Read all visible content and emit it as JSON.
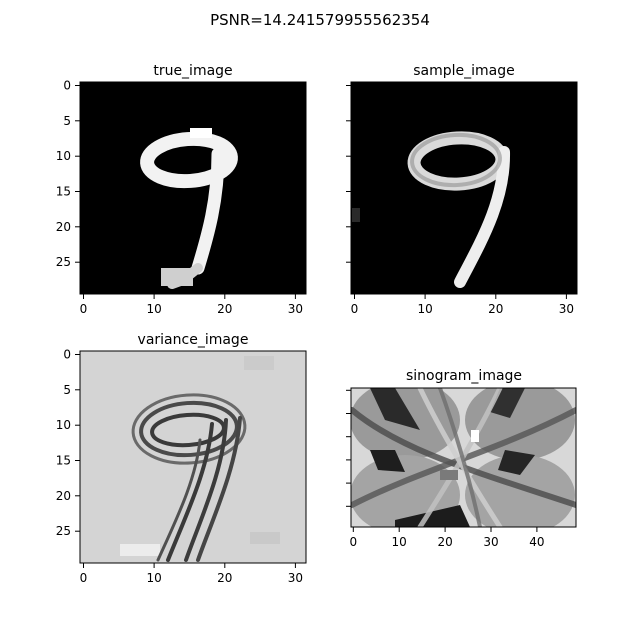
{
  "figure": {
    "suptitle": "PSNR=14.241579955562354"
  },
  "chart_data": [
    {
      "type": "heatmap",
      "panel": "true_image",
      "title": "true_image",
      "colormap": "gray",
      "xlim": [
        -0.5,
        31.5
      ],
      "ylim": [
        29.5,
        -0.5
      ],
      "xticks": [
        0,
        10,
        20,
        30
      ],
      "yticks": [
        0,
        5,
        10,
        15,
        20,
        25
      ],
      "show_yticklabels": true,
      "content": "digit 9 (bright strokes on black background)"
    },
    {
      "type": "heatmap",
      "panel": "sample_image",
      "title": "sample_image",
      "colormap": "gray",
      "xlim": [
        -0.5,
        31.5
      ],
      "ylim": [
        29.5,
        -0.5
      ],
      "xticks": [
        0,
        10,
        20,
        30
      ],
      "yticks": [
        0,
        5,
        10,
        15,
        20,
        25
      ],
      "show_yticklabels": false,
      "content": "digit 9 reconstruction (bright strokes on black background)"
    },
    {
      "type": "heatmap",
      "panel": "variance_image",
      "title": "variance_image",
      "colormap": "gray",
      "xlim": [
        -0.5,
        31.5
      ],
      "ylim": [
        29.5,
        -0.5
      ],
      "xticks": [
        0,
        10,
        20,
        30
      ],
      "yticks": [
        0,
        5,
        10,
        15,
        20,
        25
      ],
      "show_yticklabels": true,
      "content": "dark outline of digit 9 on light gray background"
    },
    {
      "type": "heatmap",
      "panel": "sinogram_image",
      "title": "sinogram_image",
      "colormap": "gray",
      "xlim": [
        -0.5,
        48.5
      ],
      "ylim": [
        29.5,
        -0.5
      ],
      "xticks": [
        0,
        10,
        20,
        30,
        40
      ],
      "yticks": [
        0,
        5,
        10,
        15,
        20,
        25
      ],
      "show_yticklabels": false,
      "content": "sinogram with crossing sinusoidal bands"
    }
  ]
}
